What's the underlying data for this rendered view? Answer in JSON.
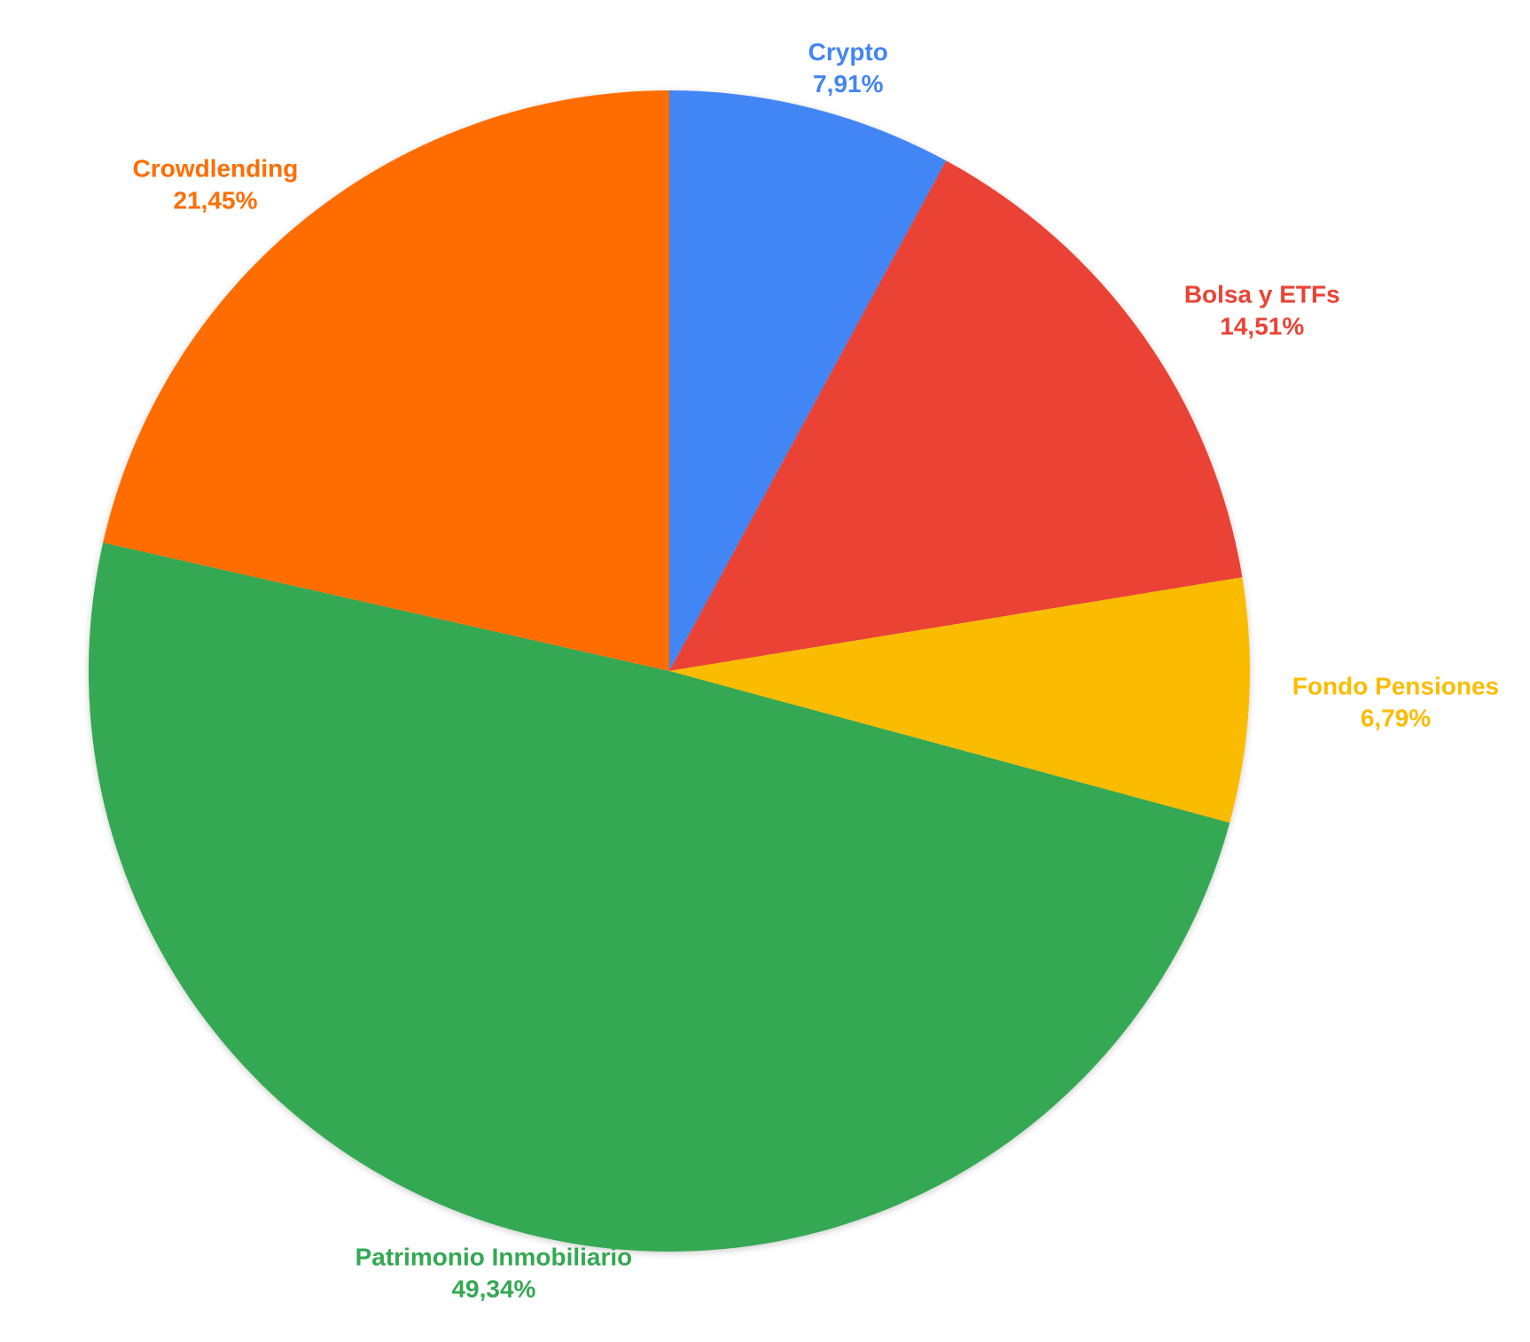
{
  "chart_data": {
    "type": "pie",
    "categories": [
      "Crypto",
      "Bolsa y ETFs",
      "Fondo Pensiones",
      "Patrimonio Inmobiliario",
      "Crowdlending"
    ],
    "values": [
      7.91,
      14.51,
      6.79,
      49.34,
      21.45
    ],
    "value_labels": [
      "7,91%",
      "14,51%",
      "6,79%",
      "49,34%",
      "21,45%"
    ],
    "colors": [
      "#4285f4",
      "#ea4335",
      "#fbbc04",
      "#34a853",
      "#ff6d01"
    ]
  }
}
